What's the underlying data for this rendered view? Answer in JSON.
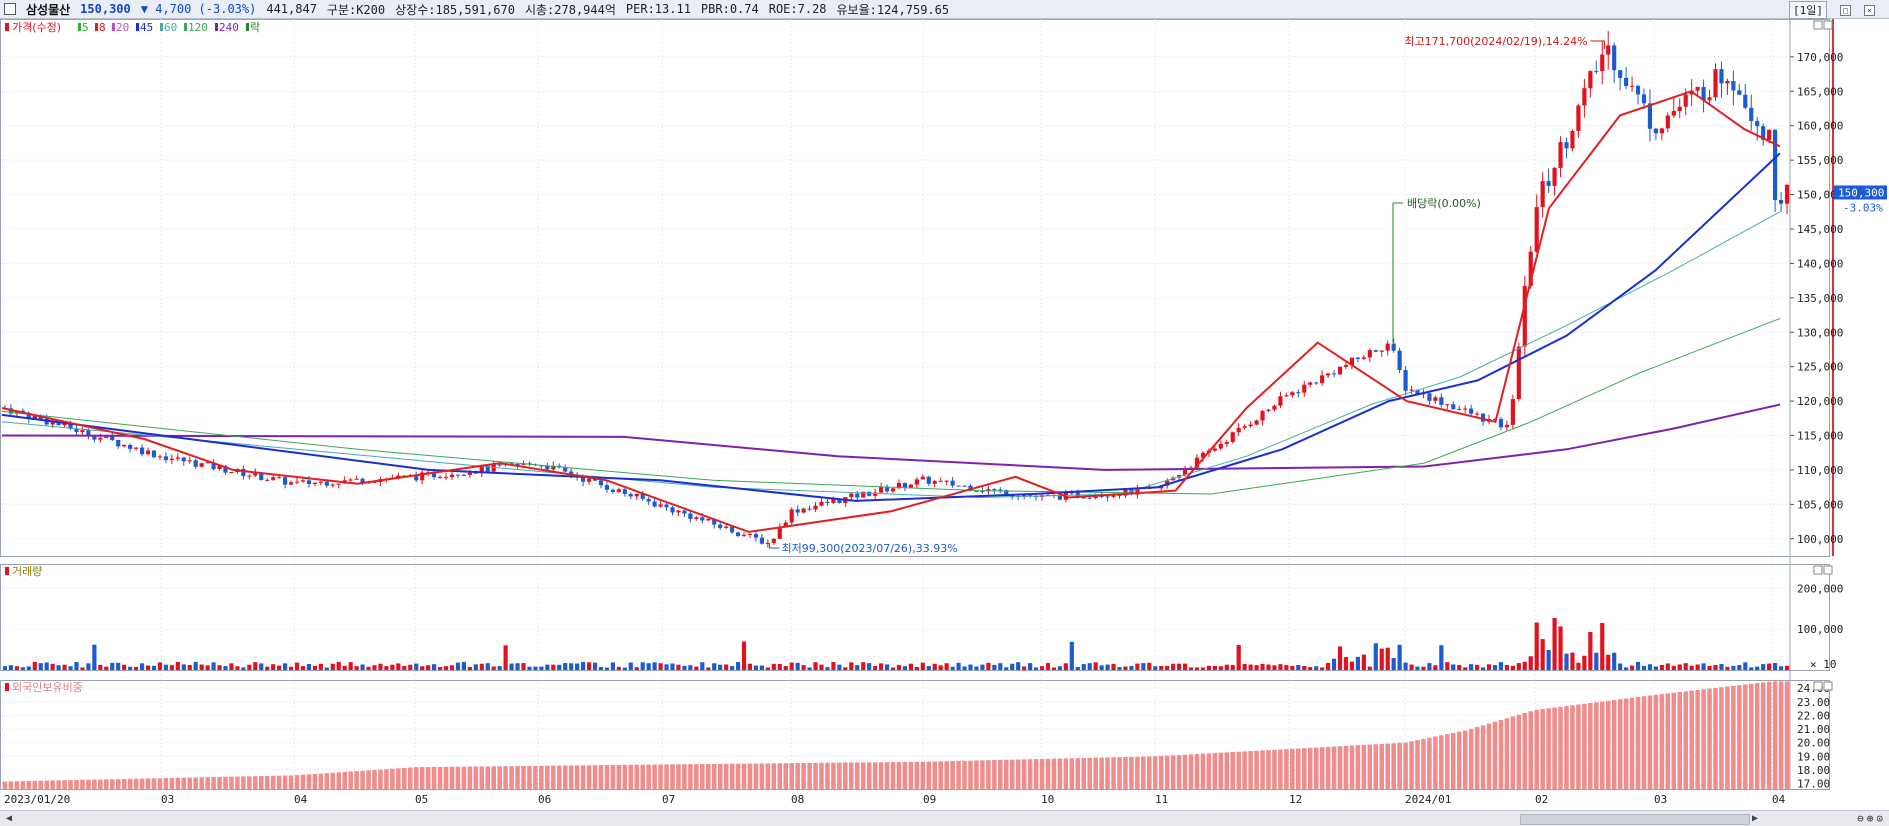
{
  "header": {
    "name": "삼성물산",
    "price": "150,300",
    "change": "▼ 4,700 (-3.03%)",
    "volume": "441,847",
    "market": "구분:K200",
    "listed": "상장수:185,591,670",
    "mktcap": "시총:278,944억",
    "per": "PER:13.11",
    "pbr": "PBR:0.74",
    "roe": "ROE:7.28",
    "float": "유보율:124,759.65",
    "period": "[1일]"
  },
  "legend": {
    "price_label": "가격(수정)",
    "ma": [
      {
        "label": "5",
        "color": "#2db52d"
      },
      {
        "label": "8",
        "color": "#e0201f"
      },
      {
        "label": "20",
        "color": "#c050c8"
      },
      {
        "label": "45",
        "color": "#1a2ed1"
      },
      {
        "label": "60",
        "color": "#49a9b0"
      },
      {
        "label": "120",
        "color": "#3ca65a"
      },
      {
        "label": "240",
        "color": "#7f20b0"
      }
    ],
    "dividend_label": "락"
  },
  "annotations": {
    "max": "최고171,700(2024/02/19),14.24%",
    "min": "최저99,300(2023/07/26),33.93%",
    "dividend": "배당락(0.00%)"
  },
  "panels": {
    "volume_title": "거래량",
    "foreign_title": "외국인보유비중",
    "volume_unit": "× 10"
  },
  "current_badge": {
    "price": "150,300",
    "pct": "-3.03%"
  },
  "colors": {
    "up": "#e3101e",
    "down": "#1b5bd3",
    "grid": "#d8dce6"
  },
  "chart_data": [
    {
      "type": "line",
      "title": "가격(수정)",
      "y_axis_labels": [
        "170,000",
        "165,000",
        "160,000",
        "155,000",
        "150,000",
        "145,000",
        "140,000",
        "135,000",
        "130,000",
        "125,000",
        "120,000",
        "115,000",
        "110,000",
        "105,000",
        "100,000"
      ],
      "ylim": [
        97500,
        175500
      ],
      "x_ticks": [
        "2023/01/20",
        "03",
        "04",
        "05",
        "06",
        "07",
        "08",
        "09",
        "10",
        "11",
        "12",
        "2024/01",
        "02",
        "03",
        "04"
      ],
      "key_points": [
        {
          "date": "2023/01/20",
          "close": 119000
        },
        {
          "date": "2023/03",
          "close": 112000
        },
        {
          "date": "2023/04",
          "close": 108000
        },
        {
          "date": "2023/05",
          "close": 109000
        },
        {
          "date": "2023/06",
          "close": 111000
        },
        {
          "date": "2023/07/26",
          "close": 99300
        },
        {
          "date": "2023/08",
          "close": 104000
        },
        {
          "date": "2023/09",
          "close": 108500
        },
        {
          "date": "2023/10",
          "close": 106000
        },
        {
          "date": "2023/11",
          "close": 107000
        },
        {
          "date": "2023/12",
          "close": 121000
        },
        {
          "date": "2023/12/27",
          "close": 128500
        },
        {
          "date": "2024/01",
          "close": 122000
        },
        {
          "date": "2024/01/25",
          "close": 116000
        },
        {
          "date": "2024/02",
          "close": 148000
        },
        {
          "date": "2024/02/19",
          "close": 171700
        },
        {
          "date": "2024/03",
          "close": 160000
        },
        {
          "date": "2024/03/20",
          "close": 168000
        },
        {
          "date": "2024/04",
          "close": 157000
        },
        {
          "date": "2024/04/04",
          "close": 150300
        }
      ],
      "series": [
        {
          "name": "240",
          "values": [
            [
              0,
              115000
            ],
            [
              0.35,
              114800
            ],
            [
              0.47,
              112000
            ],
            [
              0.62,
              110000
            ],
            [
              0.8,
              110500
            ],
            [
              0.88,
              113000
            ],
            [
              0.94,
              116000
            ],
            [
              1.0,
              119500
            ]
          ]
        },
        {
          "name": "120",
          "values": [
            [
              0,
              118500
            ],
            [
              0.2,
              113000
            ],
            [
              0.4,
              108500
            ],
            [
              0.55,
              107000
            ],
            [
              0.68,
              106500
            ],
            [
              0.72,
              108000
            ],
            [
              0.8,
              111000
            ],
            [
              0.86,
              117000
            ],
            [
              0.92,
              124000
            ],
            [
              1.0,
              132000
            ]
          ]
        },
        {
          "name": "60",
          "values": [
            [
              0,
              117000
            ],
            [
              0.25,
              111000
            ],
            [
              0.4,
              107500
            ],
            [
              0.55,
              106000
            ],
            [
              0.63,
              106500
            ],
            [
              0.7,
              112000
            ],
            [
              0.77,
              119500
            ],
            [
              0.82,
              123500
            ],
            [
              0.88,
              131000
            ],
            [
              0.94,
              139000
            ],
            [
              1.0,
              147500
            ]
          ]
        },
        {
          "name": "45",
          "values": [
            [
              0,
              118000
            ],
            [
              0.12,
              114000
            ],
            [
              0.24,
              110000
            ],
            [
              0.37,
              108500
            ],
            [
              0.48,
              105500
            ],
            [
              0.58,
              106500
            ],
            [
              0.65,
              107500
            ],
            [
              0.72,
              113000
            ],
            [
              0.78,
              120000
            ],
            [
              0.83,
              123000
            ],
            [
              0.88,
              129500
            ],
            [
              0.93,
              139000
            ],
            [
              1.0,
              156000
            ]
          ]
        },
        {
          "name": "8",
          "values": [
            [
              0,
              119000
            ],
            [
              0.08,
              114500
            ],
            [
              0.13,
              110000
            ],
            [
              0.2,
              108000
            ],
            [
              0.28,
              111000
            ],
            [
              0.34,
              108500
            ],
            [
              0.42,
              101000
            ],
            [
              0.5,
              104000
            ],
            [
              0.57,
              109000
            ],
            [
              0.6,
              106000
            ],
            [
              0.66,
              107000
            ],
            [
              0.7,
              119000
            ],
            [
              0.74,
              128500
            ],
            [
              0.79,
              120000
            ],
            [
              0.84,
              117000
            ],
            [
              0.87,
              148000
            ],
            [
              0.91,
              161500
            ],
            [
              0.95,
              165000
            ],
            [
              0.98,
              159500
            ],
            [
              1.0,
              157000
            ]
          ]
        }
      ]
    },
    {
      "type": "bar",
      "title": "거래량",
      "y_axis_labels": [
        "200,000",
        "100,000"
      ],
      "ylim": [
        0,
        250000
      ]
    },
    {
      "type": "bar",
      "title": "외국인보유비중",
      "y_axis_labels": [
        "24.00",
        "23.00",
        "22.00",
        "21.00",
        "20.00",
        "19.00",
        "18.00",
        "17.00"
      ],
      "ylim": [
        16.6,
        24.6
      ],
      "key_points": [
        {
          "date": "2023/01/20",
          "value": 17.15
        },
        {
          "date": "2023/04",
          "value": 17.6
        },
        {
          "date": "2023/05",
          "value": 18.2
        },
        {
          "date": "2023/07",
          "value": 18.4
        },
        {
          "date": "2023/09",
          "value": 18.6
        },
        {
          "date": "2023/11",
          "value": 19.0
        },
        {
          "date": "2024/01",
          "value": 20.0
        },
        {
          "date": "2024/01/15",
          "value": 20.9
        },
        {
          "date": "2024/02",
          "value": 22.4
        },
        {
          "date": "2024/03",
          "value": 23.5
        },
        {
          "date": "2024/04",
          "value": 24.5
        }
      ]
    }
  ]
}
